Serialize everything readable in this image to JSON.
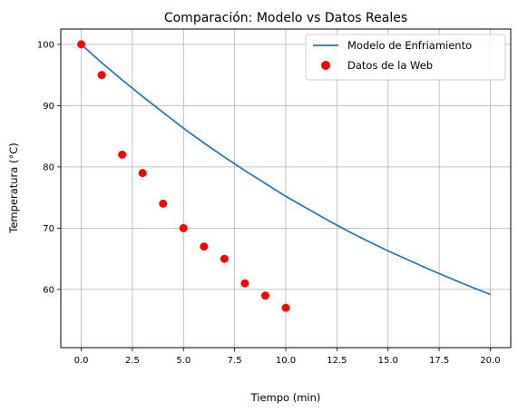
{
  "chart_data": {
    "type": "line",
    "title": "Comparación: Modelo vs Datos Reales",
    "xlabel": "Tiempo (min)",
    "ylabel": "Temperatura (°C)",
    "xlim": [
      -1.0,
      21.0
    ],
    "ylim": [
      50.5,
      102.5
    ],
    "x_ticks": [
      0.0,
      2.5,
      5.0,
      7.5,
      10.0,
      12.5,
      15.0,
      17.5,
      20.0
    ],
    "x_tick_labels": [
      "0.0",
      "2.5",
      "5.0",
      "7.5",
      "10.0",
      "12.5",
      "15.0",
      "17.5",
      "20.0"
    ],
    "y_ticks": [
      60,
      70,
      80,
      90,
      100
    ],
    "y_tick_labels": [
      "60",
      "70",
      "80",
      "90",
      "100"
    ],
    "grid": true,
    "legend_position": "top-right",
    "series": [
      {
        "name": "Modelo de Enfriamiento",
        "kind": "line",
        "color": "#1f77b4",
        "x": [
          0,
          1,
          2,
          3,
          4,
          5,
          6,
          7,
          8,
          9,
          10,
          11,
          12,
          13,
          14,
          15,
          16,
          17,
          18,
          19,
          20
        ],
        "y": [
          100.0,
          97.0,
          94.2,
          91.5,
          88.9,
          86.3,
          83.9,
          81.6,
          79.4,
          77.3,
          75.2,
          73.3,
          71.4,
          69.6,
          67.9,
          66.3,
          64.8,
          63.3,
          61.9,
          60.5,
          59.2
        ]
      },
      {
        "name": "Datos de la Web",
        "kind": "scatter",
        "color": "#ff0000",
        "x": [
          0,
          1,
          2,
          3,
          4,
          5,
          6,
          7,
          8,
          9,
          10
        ],
        "y": [
          100,
          95,
          82,
          79,
          74,
          70,
          67,
          65,
          61,
          59,
          57
        ]
      }
    ]
  }
}
